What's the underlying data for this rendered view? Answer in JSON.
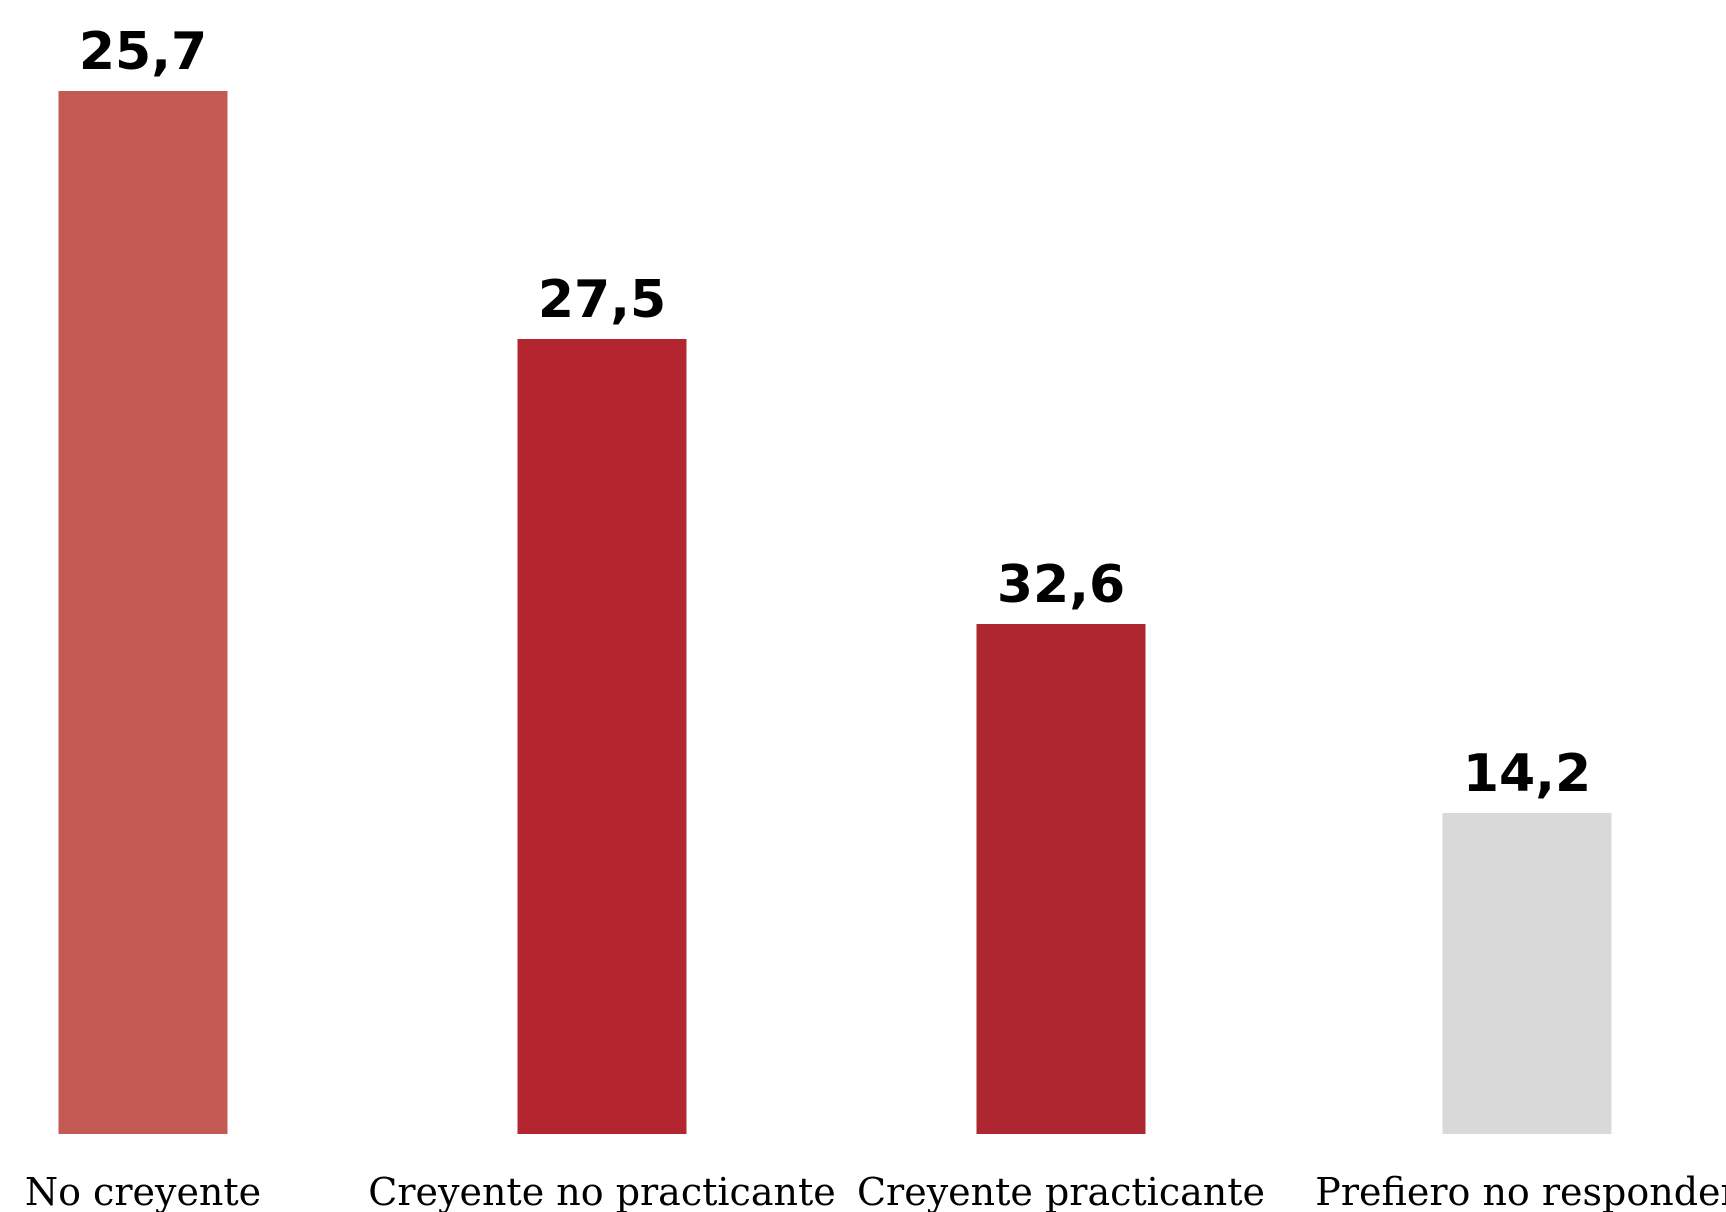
{
  "chart_data": {
    "type": "bar",
    "categories": [
      "No creyente",
      "Creyente no practicante",
      "Creyente practicante",
      "Prefiero no responder"
    ],
    "values": [
      25.7,
      27.5,
      32.6,
      14.2
    ],
    "value_labels": [
      "25,7",
      "27,5",
      "32,6",
      "14,2"
    ],
    "colors": [
      "#c55a55",
      "#b3262f",
      "#ae2730",
      "#d9d9d9"
    ],
    "title": "",
    "xlabel": "",
    "ylabel": "",
    "grid": false,
    "legend": "none"
  }
}
